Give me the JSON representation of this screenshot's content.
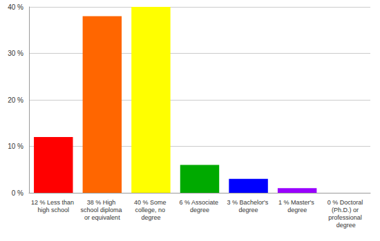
{
  "chart_data": {
    "type": "bar",
    "categories": [
      "12 % Less than high school",
      "38 % High school diploma or equivalent",
      "40 % Some college, no degree",
      "6 % Associate degree",
      "3 % Bachelor's degree",
      "1 % Master's degree",
      "0 % Doctoral (Ph.D.) or professional degree"
    ],
    "values": [
      12,
      38,
      40,
      6,
      3,
      1,
      0
    ],
    "colors": [
      "#ff0000",
      "#ff6600",
      "#ffff00",
      "#00aa00",
      "#0000ff",
      "#9900ff",
      "#ff00ff"
    ],
    "ylim": [
      0,
      40
    ],
    "yticks": [
      {
        "value": 0,
        "label": "0 %"
      },
      {
        "value": 10,
        "label": "10 %"
      },
      {
        "value": 20,
        "label": "20 %"
      },
      {
        "value": 30,
        "label": "30 %"
      },
      {
        "value": 40,
        "label": "40 %"
      }
    ],
    "grid": true
  }
}
